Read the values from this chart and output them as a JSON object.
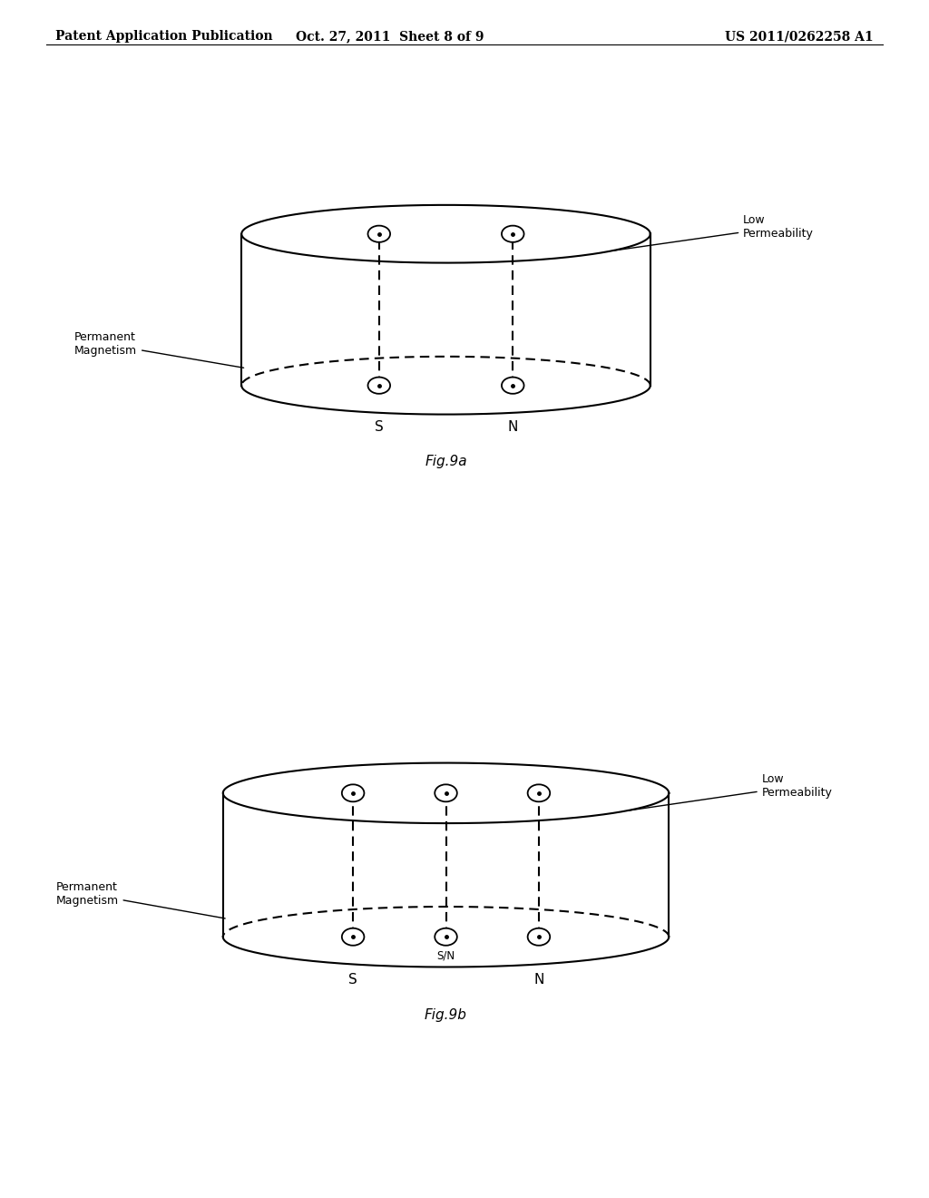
{
  "bg_color": "#ffffff",
  "line_color": "#000000",
  "header_left": "Patent Application Publication",
  "header_mid": "Oct. 27, 2011  Sheet 8 of 9",
  "header_right": "US 2011/0262258 A1",
  "fig_label_a": "Fig.9a",
  "fig_label_b": "Fig.9b",
  "label_low_perm": "Low\nPermeability",
  "label_perm_mag": "Permanent\nMagnetism",
  "label_S_a": "S",
  "label_N_a": "N",
  "label_S_b": "S",
  "label_N_b": "N",
  "label_SN_b": "S/N",
  "font_size_header": 10,
  "font_size_labels": 9,
  "font_size_SN": 11,
  "font_size_fig": 11
}
